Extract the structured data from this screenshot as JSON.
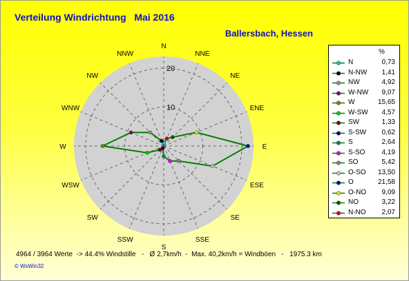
{
  "title": "Verteilung Windrichtung   Mai 2016",
  "location": "Ballersbach, Hessen",
  "footer": "4964 / 3964 Werte  -> 44.4% Windstille   -   Ø 2,7km/h  -  Max. 40,2km/h = Windböen   -   1975.3 km",
  "credit": "© WsWin32",
  "chart_data": {
    "type": "radar",
    "directions": [
      "N",
      "NNE",
      "NE",
      "ENE",
      "E",
      "ESE",
      "SE",
      "SSE",
      "S",
      "SSW",
      "SW",
      "WSW",
      "W",
      "WNW",
      "NW",
      "NNW"
    ],
    "rings": [
      10,
      20
    ],
    "rmax": 23,
    "line_color": "#008000",
    "legend_unit": "%",
    "series": [
      {
        "name": "N",
        "direction": "N",
        "value": "0,73",
        "color": "#00c8c8"
      },
      {
        "name": "N-NW",
        "direction": "NNW",
        "value": "1,41",
        "color": "#000000"
      },
      {
        "name": "NW",
        "direction": "NW",
        "value": "4,92",
        "color": "#909090"
      },
      {
        "name": "W-NW",
        "direction": "WNW",
        "value": "9,07",
        "color": "#800080"
      },
      {
        "name": "W",
        "direction": "W",
        "value": "15,65",
        "color": "#808000"
      },
      {
        "name": "W-SW",
        "direction": "WSW",
        "value": "4,57",
        "color": "#00d000"
      },
      {
        "name": "SW",
        "direction": "SW",
        "value": "1,33",
        "color": "#800000"
      },
      {
        "name": "S-SW",
        "direction": "SSW",
        "value": "0,62",
        "color": "#000080"
      },
      {
        "name": "S",
        "direction": "S",
        "value": "2,64",
        "color": "#008080"
      },
      {
        "name": "S-SO",
        "direction": "SSE",
        "value": "4,19",
        "color": "#e000e0"
      },
      {
        "name": "SO",
        "direction": "SE",
        "value": "5,42",
        "color": "#808080"
      },
      {
        "name": "O-SO",
        "direction": "ESE",
        "value": "13,50",
        "color": "#c0c0c0"
      },
      {
        "name": "O",
        "direction": "E",
        "value": "21,58",
        "color": "#0000c0"
      },
      {
        "name": "O-NO",
        "direction": "ENE",
        "value": "9,09",
        "color": "#e0e000"
      },
      {
        "name": "NO",
        "direction": "NE",
        "value": "3,22",
        "color": "#006000"
      },
      {
        "name": "N-NO",
        "direction": "NNE",
        "value": "2,07",
        "color": "#e00000"
      }
    ]
  }
}
